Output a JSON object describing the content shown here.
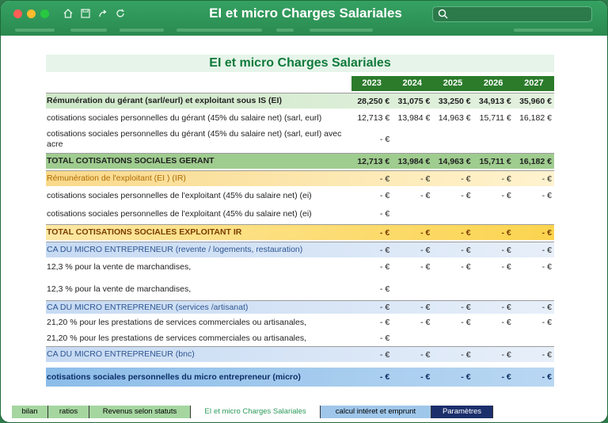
{
  "window": {
    "title": "EI et micro Charges Salariales"
  },
  "sheet": {
    "title": "EI et micro Charges Salariales",
    "years": [
      "2023",
      "2024",
      "2025",
      "2026",
      "2027"
    ],
    "rows": [
      {
        "label": "Rémunération du gérant (sarl/eurl) et exploitant sous IS (EI)",
        "values": [
          "28,250 €",
          "31,075 €",
          "33,250 €",
          "34,913 €",
          "35,960 €"
        ]
      },
      {
        "label": "cotisations sociales personnelles du gérant (45% du salaire net) (sarl, eurl)",
        "values": [
          "12,713 €",
          "13,984 €",
          "14,963 €",
          "15,711 €",
          "16,182 €"
        ]
      },
      {
        "label": "cotisations sociales personnelles du gérant (45% du salaire net) (sarl, eurl) avec acre",
        "values": [
          "-  €",
          "",
          "",
          "",
          ""
        ]
      },
      {
        "label": "TOTAL COTISATIONS SOCIALES GERANT",
        "values": [
          "12,713 €",
          "13,984 €",
          "14,963 €",
          "15,711 €",
          "16,182 €"
        ]
      },
      {
        "label": "Rémunération de l'exploitant (EI ) (IR)",
        "values": [
          "-  €",
          "-  €",
          "-  €",
          "-  €",
          "-  €"
        ]
      },
      {
        "label": "cotisations sociales personnelles de l'exploitant (45% du salaire net) (ei)",
        "values": [
          "-  €",
          "-  €",
          "-  €",
          "-  €",
          "-  €"
        ]
      },
      {
        "label": "cotisations sociales personnelles de l'exploitant (45% du salaire net) (ei)",
        "values": [
          "-  €",
          "",
          "",
          "",
          ""
        ]
      },
      {
        "label": "TOTAL COTISATIONS SOCIALES EXPLOITANT IR",
        "values": [
          "-  €",
          "-  €",
          "-  €",
          "-  €",
          "-  €"
        ]
      },
      {
        "label": "CA DU MICRO ENTREPRENEUR (revente / logements, restauration)",
        "values": [
          "-  €",
          "-  €",
          "-  €",
          "-  €",
          "-  €"
        ]
      },
      {
        "label": "12,3 % pour la vente de marchandises,",
        "values": [
          "-  €",
          "-  €",
          "-  €",
          "-  €",
          "-  €"
        ]
      },
      {
        "label": "12,3 % pour la vente de marchandises,",
        "values": [
          "-  €",
          "",
          "",
          "",
          ""
        ]
      },
      {
        "label": "CA DU MICRO ENTREPRENEUR (services /artisanat)",
        "values": [
          "-  €",
          "-  €",
          "-  €",
          "-  €",
          "-  €"
        ]
      },
      {
        "label": "21,20 % pour les prestations de services commerciales ou artisanales,",
        "values": [
          "-  €",
          "-  €",
          "-  €",
          "-  €",
          "-  €"
        ]
      },
      {
        "label": "21,20 % pour les prestations de services commerciales ou artisanales,",
        "values": [
          "-  €",
          "",
          "",
          "",
          ""
        ]
      },
      {
        "label": "CA DU MICRO ENTREPRENEUR (bnc)",
        "values": [
          "-  €",
          "-  €",
          "-  €",
          "-  €",
          "-  €"
        ]
      },
      {
        "label": "cotisations sociales personnelles du micro entrepreneur  (micro)",
        "values": [
          "-  €",
          "-  €",
          "-  €",
          "-  €",
          "-  €"
        ]
      }
    ]
  },
  "tabs": [
    {
      "label": "bilan"
    },
    {
      "label": "ratios"
    },
    {
      "label": "Revenus selon statuts"
    },
    {
      "label": "EI et micro Charges Salariales"
    },
    {
      "label": "calcul intéret et emprunt"
    },
    {
      "label": "Paramètres"
    }
  ],
  "colors": {
    "titlebar": "#2f8f55",
    "year_header": "#2b7b2b",
    "green_row": "#cfe8c9",
    "yellow_row": "#fde7a3",
    "blue_row": "#d3e3f6",
    "blue_total": "#7fb3e6"
  }
}
